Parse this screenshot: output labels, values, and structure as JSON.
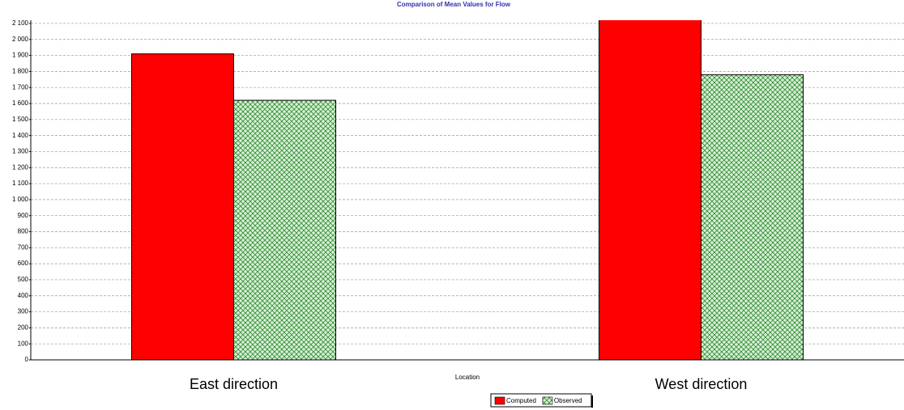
{
  "chart_data": {
    "type": "bar",
    "title": "Comparison of Mean Values for Flow",
    "x_label": "Location",
    "categories": [
      "East direction",
      "West direction"
    ],
    "series": [
      {
        "name": "Computed",
        "color": "#ff0000",
        "values": [
          1910,
          2130
        ]
      },
      {
        "name": "Observed",
        "color": "#d8f0d8",
        "values": [
          1620,
          1780
        ]
      }
    ],
    "ylim": [
      0,
      2120
    ],
    "yticks": [
      0,
      100,
      200,
      300,
      400,
      500,
      600,
      700,
      800,
      900,
      {
        "value": 1000,
        "label": "1 000"
      },
      {
        "value": 1100,
        "label": "1 100"
      },
      {
        "value": 1200,
        "label": "1 200"
      },
      {
        "value": 1300,
        "label": "1 300"
      },
      {
        "value": 1400,
        "label": "1 400"
      },
      {
        "value": 1500,
        "label": "1 500"
      },
      {
        "value": 1600,
        "label": "1 600"
      },
      {
        "value": 1700,
        "label": "1 700"
      },
      {
        "value": 1800,
        "label": "1 800"
      },
      {
        "value": 1900,
        "label": "1 900"
      },
      {
        "value": 2000,
        "label": "2 000"
      },
      {
        "value": 2100,
        "label": "2 100"
      }
    ],
    "grid": true
  }
}
